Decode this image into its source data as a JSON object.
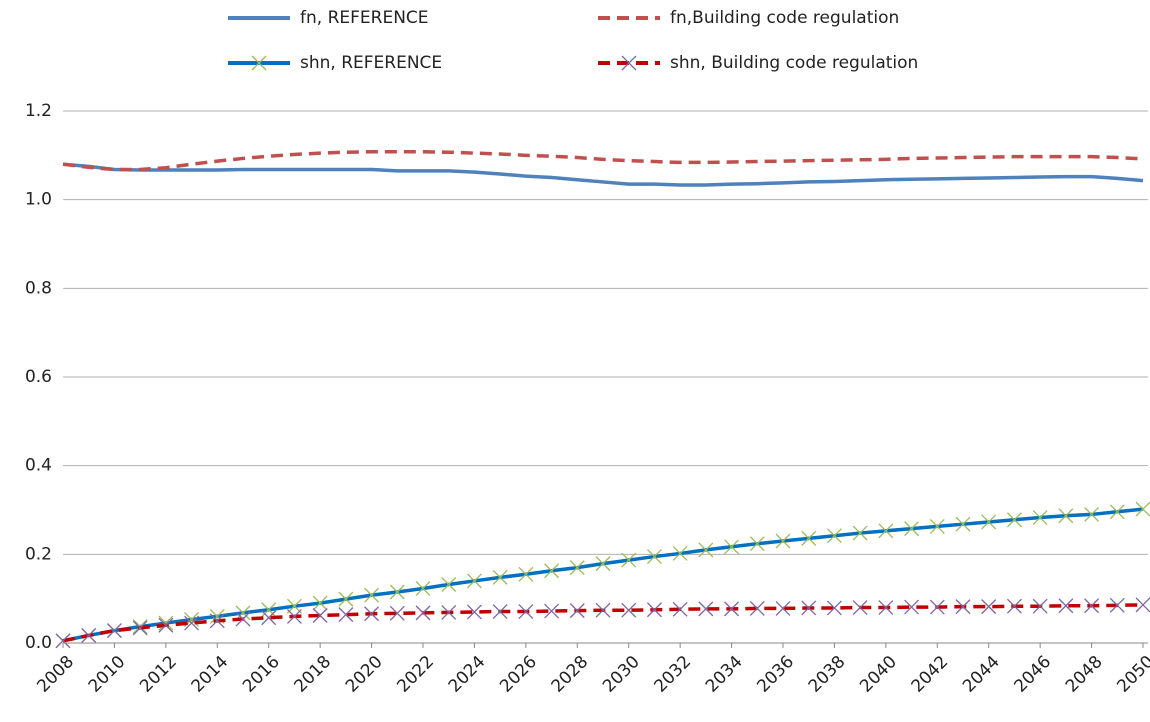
{
  "chart_data": {
    "type": "line",
    "x": [
      2008,
      2009,
      2010,
      2011,
      2012,
      2013,
      2014,
      2015,
      2016,
      2017,
      2018,
      2019,
      2020,
      2021,
      2022,
      2023,
      2024,
      2025,
      2026,
      2027,
      2028,
      2029,
      2030,
      2031,
      2032,
      2033,
      2034,
      2035,
      2036,
      2037,
      2038,
      2039,
      2040,
      2041,
      2042,
      2043,
      2044,
      2045,
      2046,
      2047,
      2048,
      2049,
      2050
    ],
    "xlim": [
      2008,
      2050
    ],
    "xticks": [
      2008,
      2010,
      2012,
      2014,
      2016,
      2018,
      2020,
      2022,
      2024,
      2026,
      2028,
      2030,
      2032,
      2034,
      2036,
      2038,
      2040,
      2042,
      2044,
      2046,
      2048,
      2050
    ],
    "ylim": [
      0,
      1.2
    ],
    "yticks": [
      {
        "value": 0,
        "label": "0.0"
      },
      0.2,
      0.4,
      0.6,
      0.8,
      {
        "value": 1,
        "label": "1.0"
      },
      1.2
    ],
    "grid": true,
    "series": [
      {
        "name": "fn, REFERENCE",
        "color": "#4f81bd",
        "dash": false,
        "values": [
          1.08,
          1.075,
          1.068,
          1.067,
          1.067,
          1.067,
          1.067,
          1.068,
          1.068,
          1.068,
          1.068,
          1.068,
          1.068,
          1.065,
          1.065,
          1.065,
          1.062,
          1.058,
          1.053,
          1.05,
          1.045,
          1.04,
          1.035,
          1.035,
          1.033,
          1.033,
          1.035,
          1.036,
          1.038,
          1.04,
          1.041,
          1.043,
          1.045,
          1.046,
          1.047,
          1.048,
          1.049,
          1.05,
          1.051,
          1.052,
          1.052,
          1.048,
          1.043
        ]
      },
      {
        "name": "fn,Building code regulation",
        "color": "#c0504d",
        "dash": true,
        "values": [
          1.08,
          1.073,
          1.068,
          1.068,
          1.072,
          1.08,
          1.087,
          1.093,
          1.098,
          1.102,
          1.105,
          1.107,
          1.108,
          1.108,
          1.108,
          1.107,
          1.105,
          1.103,
          1.1,
          1.098,
          1.095,
          1.091,
          1.088,
          1.086,
          1.084,
          1.084,
          1.085,
          1.086,
          1.087,
          1.088,
          1.089,
          1.09,
          1.091,
          1.093,
          1.094,
          1.095,
          1.096,
          1.097,
          1.097,
          1.097,
          1.097,
          1.095,
          1.092
        ]
      },
      {
        "name": "shn, REFERENCE",
        "color": "#0070c0",
        "dash": false,
        "marker": "x",
        "marker_color": "#9bbb59",
        "values": [
          0.005,
          0.017,
          0.028,
          0.037,
          0.045,
          0.053,
          0.06,
          0.068,
          0.075,
          0.083,
          0.09,
          0.099,
          0.108,
          0.115,
          0.123,
          0.132,
          0.14,
          0.148,
          0.155,
          0.163,
          0.17,
          0.179,
          0.187,
          0.195,
          0.202,
          0.21,
          0.217,
          0.224,
          0.23,
          0.236,
          0.242,
          0.248,
          0.253,
          0.258,
          0.263,
          0.268,
          0.273,
          0.278,
          0.283,
          0.287,
          0.29,
          0.296,
          0.302
        ]
      },
      {
        "name": "shn, Building code regulation",
        "color": "#c00000",
        "dash": true,
        "marker": "x",
        "marker_color": "#8064a2",
        "values": [
          0.005,
          0.017,
          0.028,
          0.034,
          0.04,
          0.045,
          0.05,
          0.054,
          0.057,
          0.06,
          0.062,
          0.064,
          0.066,
          0.067,
          0.068,
          0.069,
          0.07,
          0.071,
          0.071,
          0.072,
          0.073,
          0.074,
          0.074,
          0.075,
          0.076,
          0.077,
          0.077,
          0.078,
          0.078,
          0.079,
          0.079,
          0.08,
          0.08,
          0.081,
          0.081,
          0.082,
          0.082,
          0.083,
          0.083,
          0.084,
          0.084,
          0.085,
          0.086
        ]
      }
    ]
  }
}
